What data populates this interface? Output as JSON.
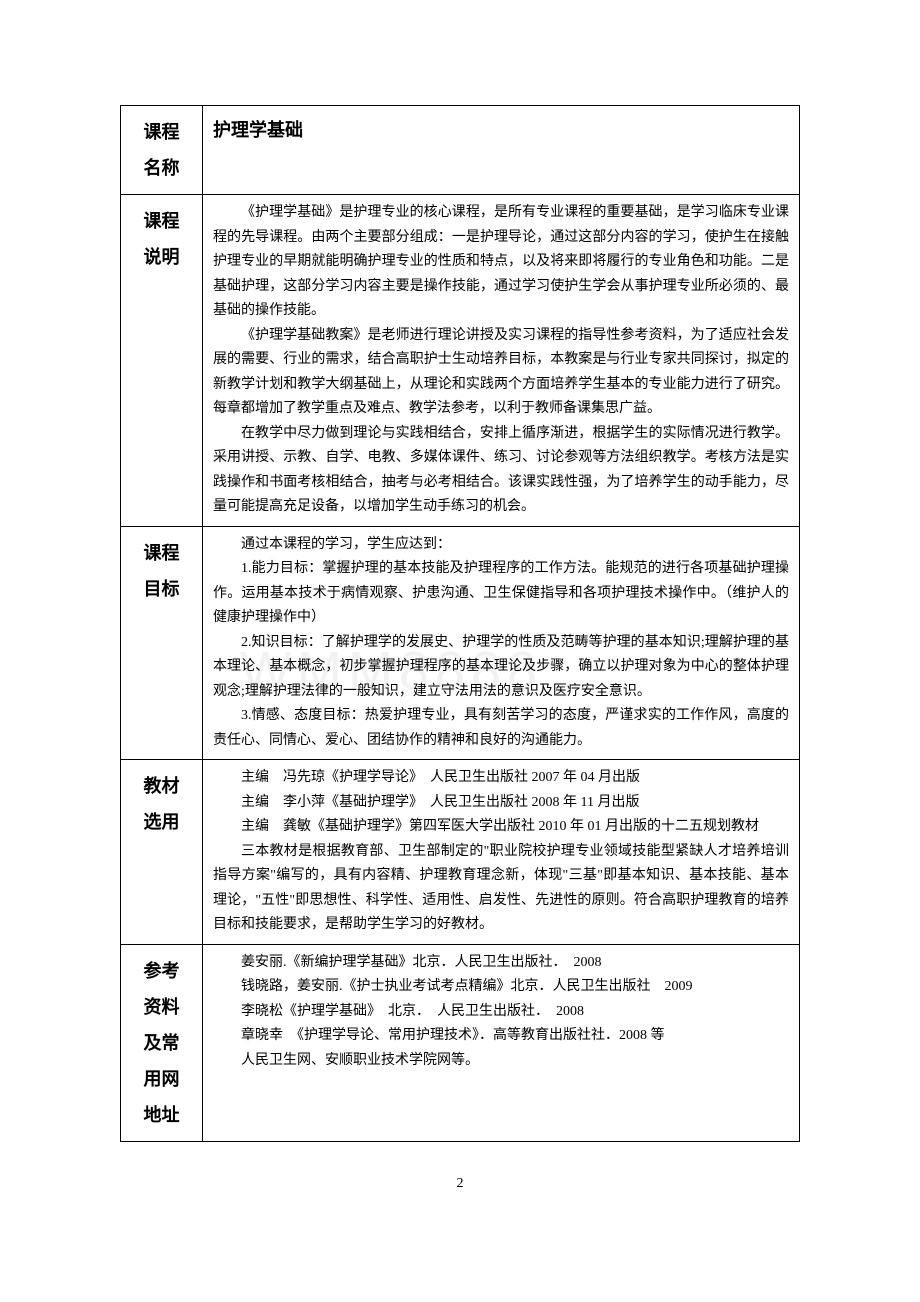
{
  "watermark": "WMM8888",
  "pageNumber": "2",
  "table": {
    "row1": {
      "label_line1": "课程",
      "label_line2": "名称",
      "title": "护理学基础"
    },
    "row2": {
      "label_line1": "课程",
      "label_line2": "说明",
      "p1": "《护理学基础》是护理专业的核心课程，是所有专业课程的重要基础，是学习临床专业课程的先导课程。由两个主要部分组成：一是护理导论，通过这部分内容的学习，使护生在接触护理专业的早期就能明确护理专业的性质和特点，以及将来即将履行的专业角色和功能。二是基础护理，这部分学习内容主要是操作技能，通过学习使护生学会从事护理专业所必须的、最基础的操作技能。",
      "p2": "《护理学基础教案》是老师进行理论讲授及实习课程的指导性参考资料，为了适应社会发展的需要、行业的需求，结合高职护士生动培养目标，本教案是与行业专家共同探讨，拟定的新教学计划和教学大纲基础上，从理论和实践两个方面培养学生基本的专业能力进行了研究。每章都增加了教学重点及难点、教学法参考，以利于教师备课集思广益。",
      "p3": "在教学中尽力做到理论与实践相结合，安排上循序渐进，根据学生的实际情况进行教学。采用讲授、示教、自学、电教、多媒体课件、练习、讨论参观等方法组织教学。考核方法是实践操作和书面考核相结合，抽考与必考相结合。该课实践性强，为了培养学生的动手能力，尽量可能提高充足设备，以增加学生动手练习的机会。"
    },
    "row3": {
      "label_line1": "课程",
      "label_line2": "目标",
      "p1": "通过本课程的学习，学生应达到：",
      "p2": "1.能力目标：掌握护理的基本技能及护理程序的工作方法。能规范的进行各项基础护理操作。运用基本技术于病情观察、护患沟通、卫生保健指导和各项护理技术操作中。（维护人的健康护理操作中）",
      "p3": "2.知识目标：了解护理学的发展史、护理学的性质及范畴等护理的基本知识;理解护理的基本理论、基本概念，初步掌握护理程序的基本理论及步骤，确立以护理对象为中心的整体护理观念;理解护理法律的一般知识，建立守法用法的意识及医疗安全意识。",
      "p4": "3.情感、态度目标：热爱护理专业，具有刻苦学习的态度，严谨求实的工作作风，高度的责任心、同情心、爱心、团结协作的精神和良好的沟通能力。"
    },
    "row4": {
      "label_line1": "教材",
      "label_line2": "选用",
      "p1": "主编　冯先琼《护理学导论》　人民卫生出版社 2007 年 04 月出版",
      "p2": "主编　李小萍《基础护理学》　人民卫生出版社 2008 年 11 月出版",
      "p3": "主编　龚敏《基础护理学》第四军医大学出版社 2010 年 01 月出版的十二五规划教材",
      "p4": "三本教材是根据教育部、卫生部制定的\"职业院校护理专业领域技能型紧缺人才培养培训指导方案\"编写的，具有内容精、护理教育理念新，体现\"三基\"即基本知识、基本技能、基本理论，\"五性\"即思想性、科学性、适用性、启发性、先进性的原则。符合高职护理教育的培养目标和技能要求，是帮助学生学习的好教材。"
    },
    "row5": {
      "label_line1": "参考",
      "label_line2": "资料",
      "label_line3": "及常",
      "label_line4": "用网",
      "label_line5": "地址",
      "p1": "姜安丽.《新编护理学基础》北京．人民卫生出版社．　2008",
      "p2": "钱晓路，姜安丽.《护士执业考试考点精编》北京．人民卫生出版社　2009",
      "p3": "李晓松《护理学基础》　北京．　人民卫生出版社．　2008",
      "p4": "章晓幸　《护理学导论、常用护理技术》．高等教育出版社社．2008 等",
      "p5": "人民卫生网、安顺职业技术学院网等。"
    }
  }
}
